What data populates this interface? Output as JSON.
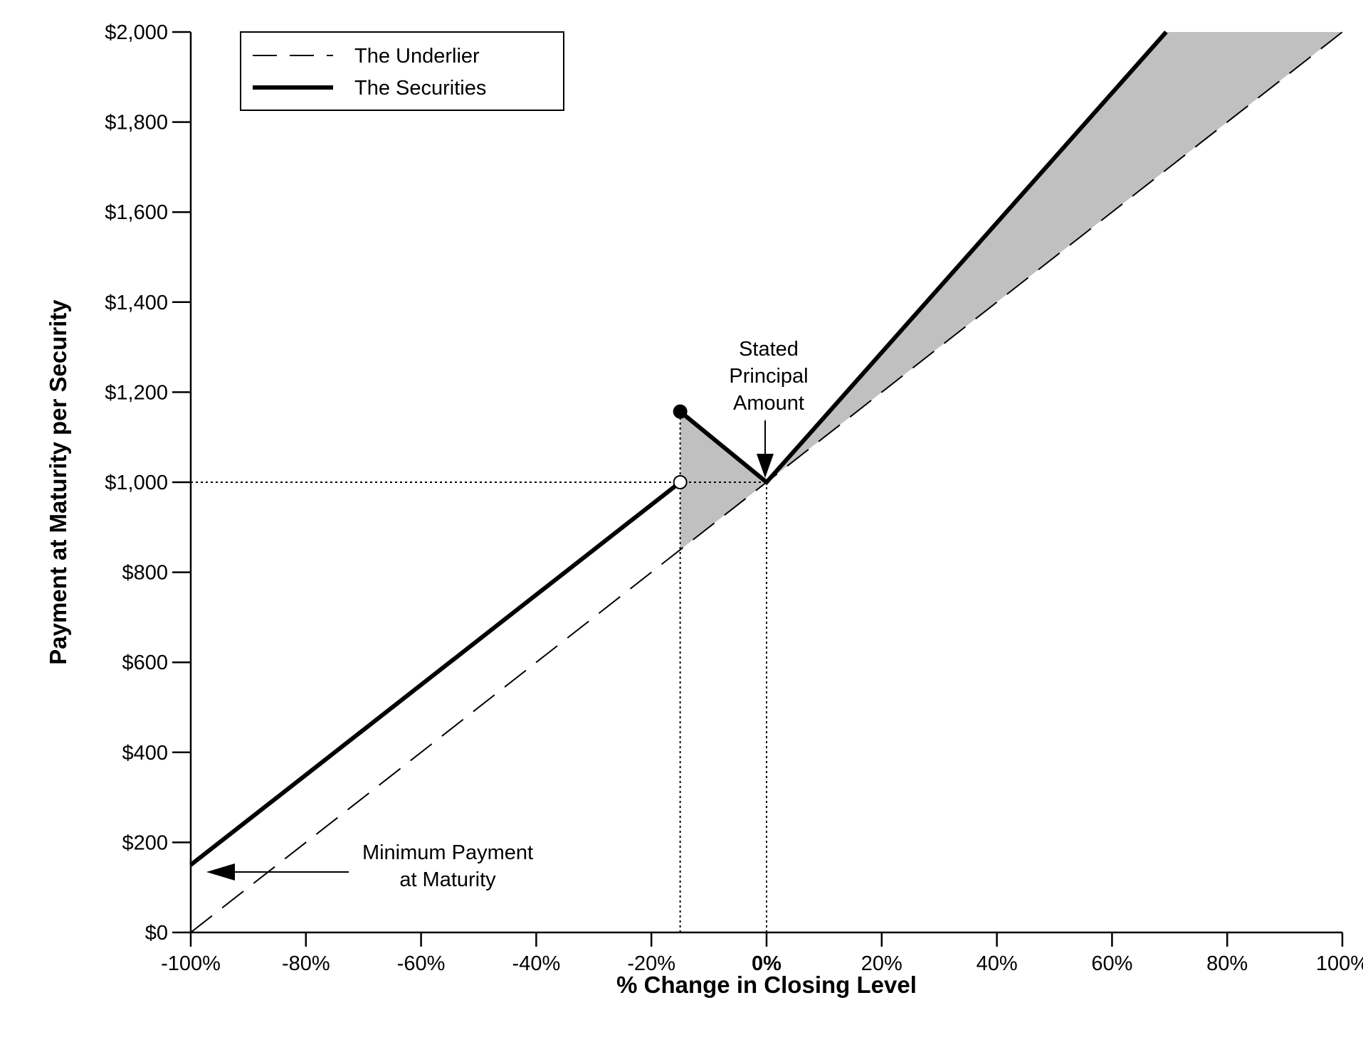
{
  "chart_data": {
    "type": "line",
    "title": "",
    "xlabel": "% Change in Closing Level",
    "ylabel": "Payment at Maturity per Security",
    "xlim": [
      -100,
      100
    ],
    "ylim": [
      0,
      2000
    ],
    "x_ticks": [
      -100,
      -80,
      -60,
      -40,
      -20,
      0,
      20,
      40,
      60,
      80,
      100
    ],
    "x_tick_labels": [
      "-100%",
      "-80%",
      "-60%",
      "-40%",
      "-20%",
      "0%",
      "20%",
      "40%",
      "60%",
      "80%",
      "100%"
    ],
    "y_ticks": [
      0,
      200,
      400,
      600,
      800,
      1000,
      1200,
      1400,
      1600,
      1800,
      2000
    ],
    "y_tick_labels": [
      "$0",
      "$200",
      "$400",
      "$600",
      "$800",
      "$1,000",
      "$1,200",
      "$1,400",
      "$1,600",
      "$1,800",
      "$2,000"
    ],
    "grid": false,
    "legend_position": "top-left",
    "series": [
      {
        "name": "The Underlier",
        "style": "dashed",
        "points": [
          [
            -100,
            0
          ],
          [
            100,
            2000
          ]
        ]
      },
      {
        "name": "The Securities",
        "style": "solid-thick",
        "segments": [
          [
            [
              -100,
              150
            ],
            [
              -15,
              1000
            ]
          ],
          [
            [
              -15,
              1157
            ],
            [
              0,
              1000
            ],
            [
              69.4,
              2000
            ]
          ]
        ]
      }
    ],
    "markers": [
      {
        "x": -15,
        "y": 1157,
        "fill": "filled"
      },
      {
        "x": -15,
        "y": 1000,
        "fill": "open"
      }
    ],
    "shaded_regions": [
      {
        "polygon": [
          [
            -15,
            850
          ],
          [
            -15,
            1157
          ],
          [
            0,
            1000
          ]
        ]
      },
      {
        "polygon": [
          [
            0,
            1000
          ],
          [
            69.4,
            2000
          ],
          [
            100,
            2000
          ]
        ]
      }
    ],
    "reference_lines": [
      {
        "type": "horizontal",
        "y": 1000,
        "from_x": -100,
        "to_x": 0
      },
      {
        "type": "vertical",
        "x": -15,
        "from_y": 0,
        "to_y": 1157
      },
      {
        "type": "vertical",
        "x": 0,
        "from_y": 0,
        "to_y": 1000
      }
    ],
    "annotations": [
      {
        "lines": [
          "Stated",
          "Principal",
          "Amount"
        ],
        "points_to": [
          0,
          1000
        ]
      },
      {
        "lines": [
          "Minimum Payment",
          "at Maturity"
        ],
        "points_to": [
          -100,
          150
        ]
      }
    ],
    "colors": {
      "shade": "#c0c0c0",
      "line": "#000000"
    }
  }
}
